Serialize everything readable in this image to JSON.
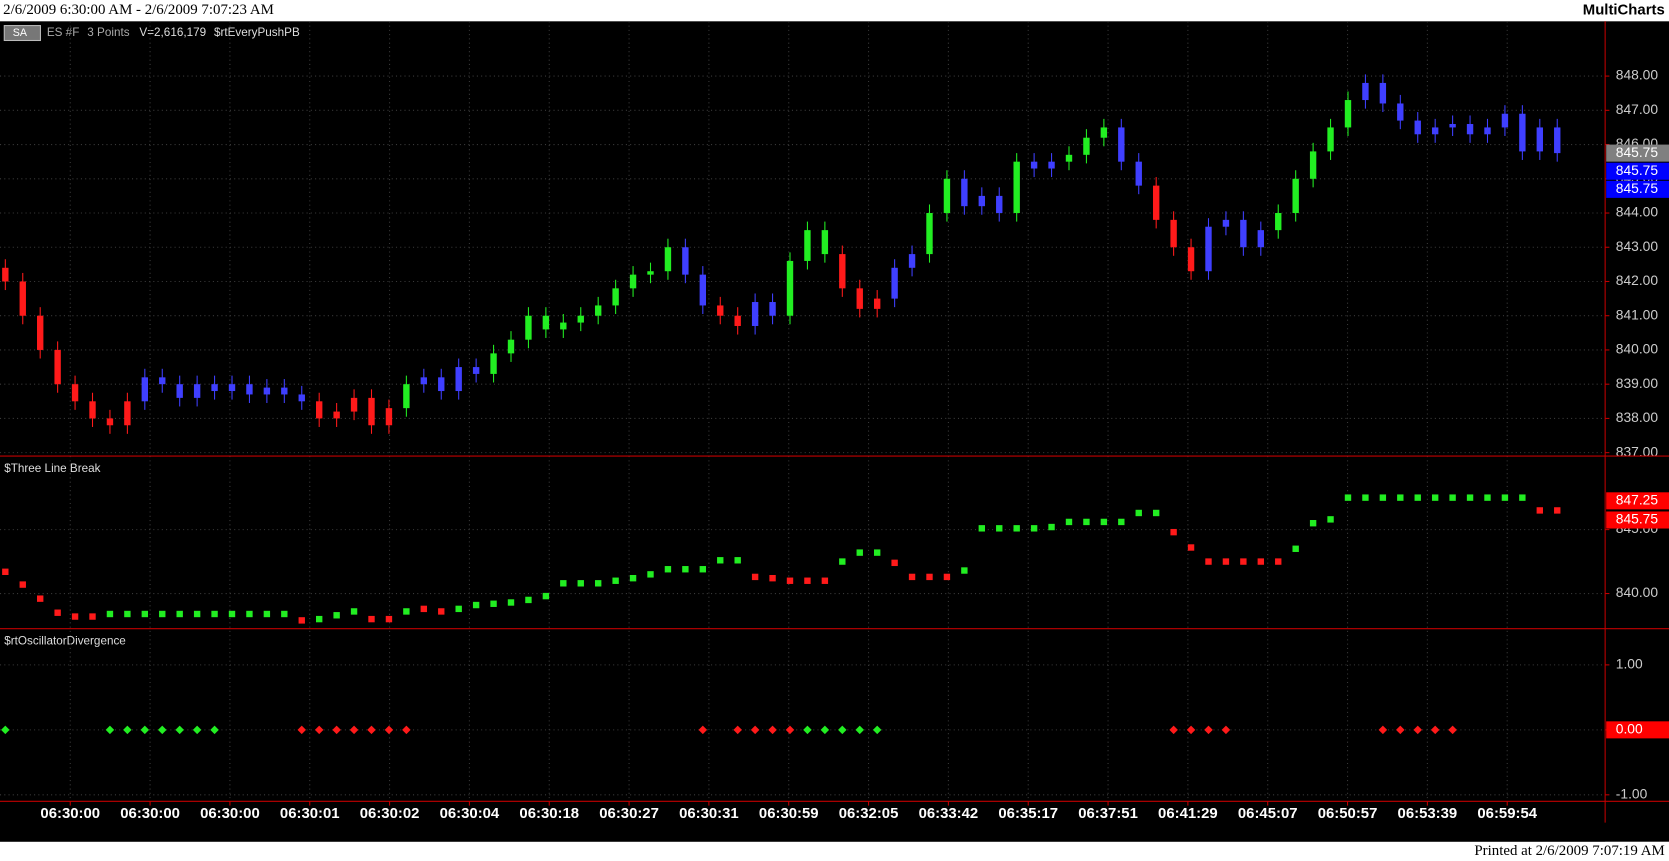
{
  "header": {
    "range": "2/6/2009 6:30:00 AM - 2/6/2009 7:07:23 AM",
    "app": "MultiCharts",
    "button": "SA",
    "symbol": "ES #F",
    "resolution": "3 Points",
    "volume": "V=2,616,179",
    "study": "$rtEveryPushPB"
  },
  "footer": {
    "printed": "Printed at 2/6/2009 7:07:19 AM"
  },
  "time_axis": {
    "labels": [
      "06:30:00",
      "06:30:00",
      "06:30:00",
      "06:30:01",
      "06:30:02",
      "06:30:04",
      "06:30:18",
      "06:30:27",
      "06:30:31",
      "06:30:59",
      "06:32:05",
      "06:33:42",
      "06:35:17",
      "06:37:51",
      "06:41:29",
      "06:45:07",
      "06:50:57",
      "06:53:39",
      "06:59:54"
    ]
  },
  "state_colors": {
    "-1": "#ff1a1a",
    "0": "#3f3fff",
    "1": "#22ee22"
  },
  "chart_data": [
    {
      "type": "candlestick",
      "open": [
        842.4,
        842.0,
        841.0,
        840.0,
        839.0,
        838.5,
        838.0,
        837.8,
        838.5,
        839.2,
        839.0,
        838.6,
        839.0,
        838.8,
        839.0,
        838.7,
        838.9,
        838.7,
        838.5,
        838.0,
        838.2,
        838.6,
        837.8,
        838.3,
        839.0,
        839.2,
        838.8,
        839.5,
        839.3,
        839.9,
        840.3,
        841.0,
        840.6,
        840.8,
        841.0,
        841.3,
        841.8,
        842.2,
        842.3,
        843.0,
        842.2,
        841.3,
        841.0,
        840.7,
        841.4,
        841.0,
        842.6,
        843.5,
        842.8,
        841.8,
        841.2,
        841.5,
        842.4,
        842.8,
        844.0,
        845.0,
        844.2,
        844.5,
        844.0,
        845.5,
        845.3,
        845.5,
        845.7,
        846.2,
        846.5,
        845.5,
        844.8,
        843.8,
        843.0,
        842.3,
        843.6,
        843.8,
        843.0,
        843.5,
        844.0,
        845.0,
        845.8,
        846.5,
        847.3,
        847.8,
        847.2,
        846.7,
        846.3,
        846.5,
        846.6,
        846.3,
        846.5,
        846.9,
        845.8,
        846.5
      ],
      "high": [
        842.65,
        842.25,
        841.25,
        840.25,
        839.25,
        838.75,
        838.25,
        838.75,
        839.45,
        839.45,
        839.25,
        839.25,
        839.25,
        839.25,
        839.25,
        839.15,
        839.15,
        838.95,
        838.75,
        838.45,
        838.85,
        838.85,
        838.55,
        839.25,
        839.45,
        839.45,
        839.75,
        839.75,
        840.15,
        840.55,
        841.25,
        841.25,
        841.05,
        841.25,
        841.55,
        842.05,
        842.45,
        842.55,
        843.25,
        843.25,
        842.45,
        841.55,
        841.25,
        841.65,
        841.65,
        842.85,
        843.75,
        843.75,
        843.05,
        842.05,
        841.75,
        842.65,
        843.05,
        844.25,
        845.25,
        845.25,
        844.75,
        844.75,
        845.75,
        845.75,
        845.75,
        845.95,
        846.45,
        846.75,
        846.75,
        845.75,
        845.05,
        844.05,
        843.25,
        843.85,
        844.05,
        844.05,
        843.75,
        844.25,
        845.25,
        846.05,
        846.75,
        847.55,
        848.05,
        848.05,
        847.45,
        846.95,
        846.75,
        846.85,
        846.85,
        846.75,
        847.15,
        847.15,
        846.75,
        846.75
      ],
      "low": [
        841.75,
        840.75,
        839.75,
        838.75,
        838.25,
        837.75,
        837.55,
        837.55,
        838.25,
        838.75,
        838.35,
        838.35,
        838.55,
        838.55,
        838.45,
        838.45,
        838.45,
        838.25,
        837.75,
        837.75,
        837.95,
        837.55,
        837.55,
        838.05,
        838.75,
        838.55,
        838.55,
        839.05,
        839.05,
        839.65,
        840.05,
        840.35,
        840.35,
        840.55,
        840.75,
        841.05,
        841.55,
        841.95,
        842.05,
        841.95,
        841.05,
        840.75,
        840.45,
        840.45,
        840.75,
        840.75,
        842.35,
        842.55,
        841.55,
        840.95,
        840.95,
        841.25,
        842.15,
        842.55,
        843.75,
        843.95,
        843.95,
        843.75,
        843.75,
        845.05,
        845.05,
        845.25,
        845.45,
        845.95,
        845.25,
        844.55,
        843.55,
        842.75,
        842.05,
        842.05,
        843.35,
        842.75,
        842.75,
        843.25,
        843.75,
        844.75,
        845.55,
        846.25,
        847.05,
        846.95,
        846.45,
        846.05,
        846.05,
        846.25,
        846.05,
        846.05,
        846.25,
        845.55,
        845.55,
        845.5
      ],
      "close": [
        842.0,
        841.0,
        840.0,
        839.0,
        838.5,
        838.0,
        837.8,
        838.5,
        839.2,
        839.0,
        838.6,
        839.0,
        838.8,
        839.0,
        838.7,
        838.9,
        838.7,
        838.5,
        838.0,
        838.2,
        838.6,
        837.8,
        838.3,
        839.0,
        839.2,
        838.8,
        839.5,
        839.3,
        839.9,
        840.3,
        841.0,
        840.6,
        840.8,
        841.0,
        841.3,
        841.8,
        842.2,
        842.3,
        843.0,
        842.2,
        841.3,
        841.0,
        840.7,
        841.4,
        841.0,
        842.6,
        843.5,
        842.8,
        841.8,
        841.2,
        841.5,
        842.4,
        842.8,
        844.0,
        845.0,
        844.2,
        844.5,
        844.0,
        845.5,
        845.3,
        845.5,
        845.7,
        846.2,
        846.5,
        845.5,
        844.8,
        843.8,
        843.0,
        842.3,
        843.6,
        843.8,
        843.0,
        843.5,
        844.0,
        845.0,
        845.8,
        846.5,
        847.3,
        847.8,
        847.2,
        846.7,
        846.3,
        846.5,
        846.6,
        846.3,
        846.5,
        846.9,
        845.8,
        846.5,
        845.75
      ],
      "states": [
        -1,
        -1,
        -1,
        -1,
        -1,
        -1,
        -1,
        -1,
        0,
        0,
        0,
        0,
        0,
        0,
        0,
        0,
        0,
        0,
        -1,
        -1,
        -1,
        -1,
        -1,
        1,
        0,
        0,
        0,
        0,
        1,
        1,
        1,
        1,
        1,
        1,
        1,
        1,
        1,
        1,
        1,
        0,
        0,
        -1,
        -1,
        0,
        0,
        1,
        1,
        1,
        -1,
        -1,
        -1,
        0,
        0,
        1,
        1,
        0,
        0,
        0,
        1,
        0,
        0,
        1,
        1,
        1,
        0,
        0,
        -1,
        -1,
        -1,
        0,
        0,
        0,
        0,
        1,
        1,
        1,
        1,
        1,
        0,
        0,
        0,
        0,
        0,
        0,
        0,
        0,
        0,
        0,
        0,
        0
      ],
      "ylim": [
        836.9,
        849.6
      ],
      "yticks": [
        {
          "value": 837,
          "label": "837.00"
        },
        {
          "value": 838,
          "label": "838.00"
        },
        {
          "value": 839,
          "label": "839.00"
        },
        {
          "value": 840,
          "label": "840.00"
        },
        {
          "value": 841,
          "label": "841.00"
        },
        {
          "value": 842,
          "label": "842.00"
        },
        {
          "value": 843,
          "label": "843.00"
        },
        {
          "value": 844,
          "label": "844.00"
        },
        {
          "value": 845,
          "label": "845.00"
        },
        {
          "value": 846,
          "label": "846.00"
        },
        {
          "value": 847,
          "label": "847.00"
        },
        {
          "value": 848,
          "label": "848.00"
        }
      ],
      "last_values": [
        845.75,
        845.75,
        845.75
      ],
      "last_colors": [
        "#808080",
        "#0000ff",
        "#0000ff"
      ],
      "grid": true
    },
    {
      "type": "step",
      "title": "$Three Line Break",
      "values": [
        841.7,
        840.7,
        839.6,
        838.5,
        838.2,
        838.2,
        838.4,
        838.4,
        838.4,
        838.4,
        838.4,
        838.4,
        838.4,
        838.4,
        838.4,
        838.4,
        838.4,
        837.9,
        838.0,
        838.3,
        838.6,
        838.0,
        838.0,
        838.6,
        838.8,
        838.6,
        838.8,
        839.1,
        839.2,
        839.3,
        839.5,
        839.8,
        840.8,
        840.8,
        840.8,
        841.0,
        841.2,
        841.5,
        841.9,
        841.9,
        841.9,
        842.6,
        842.6,
        841.3,
        841.2,
        841.0,
        841.0,
        841.0,
        842.5,
        843.2,
        843.2,
        842.4,
        841.3,
        841.3,
        841.3,
        841.8,
        845.1,
        845.1,
        845.1,
        845.1,
        845.2,
        845.6,
        845.6,
        845.6,
        845.6,
        846.3,
        846.3,
        844.8,
        843.6,
        842.5,
        842.5,
        842.5,
        842.5,
        842.5,
        843.5,
        845.5,
        845.8,
        847.5,
        847.5,
        847.5,
        847.5,
        847.5,
        847.5,
        847.5,
        847.5,
        847.5,
        847.5,
        847.5,
        846.5,
        846.5
      ],
      "states": [
        -1,
        -1,
        -1,
        -1,
        -1,
        -1,
        1,
        1,
        1,
        1,
        1,
        1,
        1,
        1,
        1,
        1,
        1,
        -1,
        1,
        1,
        1,
        -1,
        -1,
        1,
        -1,
        -1,
        1,
        1,
        1,
        1,
        1,
        1,
        1,
        1,
        1,
        1,
        1,
        1,
        1,
        1,
        1,
        1,
        1,
        -1,
        -1,
        -1,
        -1,
        -1,
        1,
        1,
        1,
        -1,
        -1,
        -1,
        -1,
        1,
        1,
        1,
        1,
        1,
        1,
        1,
        1,
        1,
        1,
        1,
        1,
        -1,
        -1,
        -1,
        -1,
        -1,
        -1,
        -1,
        1,
        1,
        1,
        1,
        1,
        1,
        1,
        1,
        1,
        1,
        1,
        1,
        1,
        1,
        -1,
        -1
      ],
      "ylim": [
        837.25,
        850.75
      ],
      "yticks": [
        {
          "value": 840,
          "label": "840.00"
        },
        {
          "value": 845,
          "label": "845.00"
        }
      ],
      "last_values": [
        847.25,
        845.75
      ],
      "last_colors": [
        "#ff0000",
        "#ff0000"
      ],
      "grid": true
    },
    {
      "type": "dots",
      "title": "$rtOscillatorDivergence",
      "values": [
        0,
        null,
        null,
        null,
        null,
        null,
        0,
        0,
        0,
        0,
        0,
        0,
        0,
        null,
        null,
        null,
        null,
        0,
        0,
        0,
        0,
        0,
        0,
        0,
        null,
        null,
        null,
        null,
        null,
        null,
        null,
        null,
        null,
        null,
        null,
        null,
        null,
        null,
        null,
        null,
        0,
        null,
        0,
        0,
        0,
        0,
        0,
        0,
        0,
        0,
        0,
        null,
        null,
        null,
        null,
        null,
        null,
        null,
        null,
        null,
        null,
        null,
        null,
        null,
        null,
        null,
        null,
        0,
        0,
        0,
        0,
        null,
        null,
        null,
        null,
        null,
        null,
        null,
        null,
        0,
        0,
        0,
        0,
        0,
        null,
        null,
        null,
        null,
        null,
        null
      ],
      "states": [
        1,
        null,
        null,
        null,
        null,
        null,
        1,
        1,
        1,
        1,
        1,
        1,
        1,
        null,
        null,
        null,
        null,
        -1,
        -1,
        -1,
        -1,
        -1,
        -1,
        -1,
        null,
        null,
        null,
        null,
        null,
        null,
        null,
        null,
        null,
        null,
        null,
        null,
        null,
        null,
        null,
        null,
        -1,
        null,
        -1,
        -1,
        -1,
        -1,
        1,
        1,
        1,
        1,
        1,
        null,
        null,
        null,
        null,
        null,
        null,
        null,
        null,
        null,
        null,
        null,
        null,
        null,
        null,
        null,
        null,
        -1,
        -1,
        -1,
        -1,
        null,
        null,
        null,
        null,
        null,
        null,
        null,
        null,
        -1,
        -1,
        -1,
        -1,
        -1,
        null,
        null,
        null,
        null,
        null,
        null
      ],
      "ylim": [
        -1.1,
        1.557
      ],
      "yticks": [
        {
          "value": 1,
          "label": "1.00"
        },
        {
          "value": 0,
          "label": "0.00"
        },
        {
          "value": -1,
          "label": "-1.00"
        }
      ],
      "last_values": [
        {
          "value": 0,
          "label": "0.00"
        }
      ],
      "last_colors": [
        "#ff0000"
      ],
      "grid": true
    }
  ]
}
